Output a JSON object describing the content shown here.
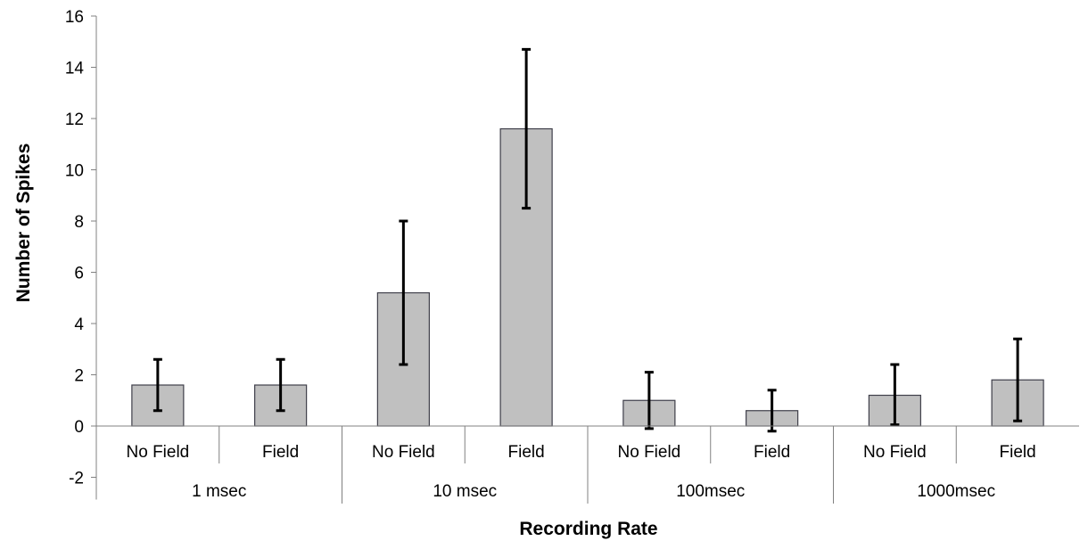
{
  "chart_data": {
    "type": "bar",
    "title": "",
    "xlabel": "Recording Rate",
    "ylabel": "Number of Spikes",
    "ylim": [
      -2,
      16
    ],
    "yticks": [
      -2,
      0,
      2,
      4,
      6,
      8,
      10,
      12,
      14,
      16
    ],
    "groups": [
      {
        "label": "1 msec",
        "bars": [
          {
            "label": "No Field",
            "value": 1.6,
            "err_low": 0.6,
            "err_high": 2.6
          },
          {
            "label": "Field",
            "value": 1.6,
            "err_low": 0.6,
            "err_high": 2.6
          }
        ]
      },
      {
        "label": "10 msec",
        "bars": [
          {
            "label": "No Field",
            "value": 5.2,
            "err_low": 2.4,
            "err_high": 8.0
          },
          {
            "label": "Field",
            "value": 11.6,
            "err_low": 8.5,
            "err_high": 14.7
          }
        ]
      },
      {
        "label": "100msec",
        "bars": [
          {
            "label": "No Field",
            "value": 1.0,
            "err_low": -0.1,
            "err_high": 2.1
          },
          {
            "label": "Field",
            "value": 0.6,
            "err_low": -0.2,
            "err_high": 1.4
          }
        ]
      },
      {
        "label": "1000msec",
        "bars": [
          {
            "label": "No Field",
            "value": 1.2,
            "err_low": 0.05,
            "err_high": 2.4
          },
          {
            "label": "Field",
            "value": 1.8,
            "err_low": 0.2,
            "err_high": 3.4
          }
        ]
      }
    ],
    "grid": false,
    "legend": "none",
    "colors": {
      "bar_fill": "#c0c0c0",
      "bar_stroke": "#3f3f4a",
      "error_bar": "#000000",
      "axis": "#808080"
    }
  }
}
